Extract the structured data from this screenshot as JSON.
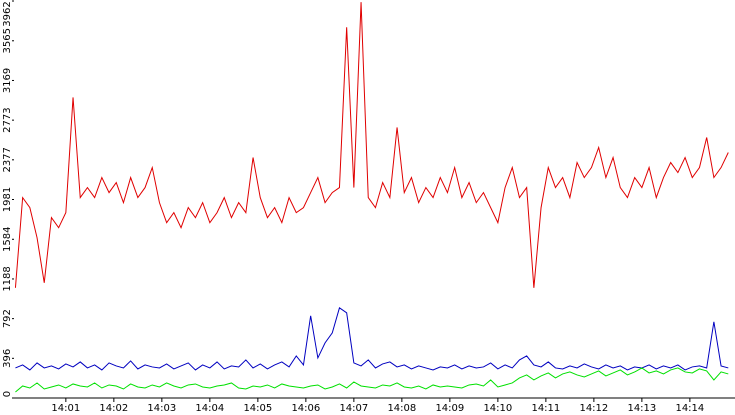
{
  "chart_data": {
    "type": "line",
    "x": [
      839.95,
      840.1,
      840.25,
      840.4,
      840.55,
      840.7,
      840.85,
      841,
      841.15,
      841.3,
      841.45,
      841.6,
      841.75,
      841.9,
      842.05,
      842.2,
      842.35,
      842.5,
      842.65,
      842.8,
      842.95,
      843.1,
      843.25,
      843.4,
      843.55,
      843.7,
      843.85,
      844,
      844.15,
      844.3,
      844.45,
      844.6,
      844.75,
      844.9,
      845.05,
      845.2,
      845.35,
      845.5,
      845.65,
      845.8,
      845.95,
      846.1,
      846.25,
      846.4,
      846.55,
      846.7,
      846.85,
      847,
      847.15,
      847.3,
      847.45,
      847.6,
      847.75,
      847.9,
      848.05,
      848.2,
      848.35,
      848.5,
      848.65,
      848.8,
      848.95,
      849.1,
      849.25,
      849.4,
      849.55,
      849.7,
      849.85,
      850,
      850.15,
      850.3,
      850.45,
      850.6,
      850.75,
      850.9,
      851.05,
      851.2,
      851.35,
      851.5,
      851.65,
      851.8,
      851.95,
      852.1,
      852.25,
      852.4,
      852.55,
      852.7,
      852.85,
      853,
      853.15,
      853.3,
      853.45,
      853.6,
      853.75,
      853.9,
      854.05,
      854.2,
      854.35,
      854.5,
      854.65,
      854.8
    ],
    "series": [
      {
        "color": "#e00000",
        "values": [
          1100,
          2000,
          1900,
          1600,
          1150,
          1800,
          1700,
          1850,
          3000,
          2000,
          2100,
          2000,
          2200,
          2050,
          2150,
          1950,
          2200,
          2000,
          2100,
          2300,
          1950,
          1750,
          1850,
          1700,
          1900,
          1800,
          1950,
          1750,
          1850,
          2000,
          1800,
          1950,
          1850,
          2400,
          2000,
          1800,
          1900,
          1750,
          2000,
          1850,
          1900,
          2050,
          2200,
          1950,
          2050,
          2100,
          3700,
          2100,
          3950,
          2000,
          1900,
          2150,
          2000,
          2700,
          2050,
          2200,
          1950,
          2100,
          2000,
          2200,
          2050,
          2300,
          2000,
          2150,
          1950,
          2050,
          1900,
          1750,
          2100,
          2300,
          2000,
          2100,
          1100,
          1900,
          2300,
          2100,
          2200,
          2000,
          2350,
          2200,
          2300,
          2500,
          2200,
          2400,
          2100,
          2000,
          2200,
          2100,
          2300,
          2000,
          2200,
          2350,
          2250,
          2400,
          2200,
          2300,
          2600,
          2200,
          2300,
          2450
        ]
      },
      {
        "color": "#0000c0",
        "values": [
          300,
          330,
          280,
          350,
          300,
          320,
          290,
          340,
          310,
          360,
          300,
          330,
          280,
          350,
          320,
          300,
          370,
          290,
          330,
          310,
          300,
          340,
          290,
          320,
          350,
          280,
          330,
          300,
          360,
          290,
          320,
          310,
          380,
          300,
          340,
          290,
          330,
          360,
          310,
          420,
          330,
          820,
          400,
          550,
          650,
          900,
          850,
          350,
          320,
          380,
          300,
          340,
          360,
          310,
          330,
          290,
          320,
          300,
          280,
          310,
          300,
          330,
          290,
          320,
          300,
          310,
          350,
          290,
          330,
          300,
          380,
          420,
          330,
          310,
          360,
          300,
          290,
          320,
          300,
          340,
          310,
          290,
          330,
          300,
          320,
          280,
          310,
          300,
          330,
          290,
          320,
          300,
          330,
          280,
          310,
          320,
          300,
          760,
          320,
          300
        ]
      },
      {
        "color": "#00e000",
        "values": [
          60,
          120,
          100,
          150,
          90,
          110,
          130,
          100,
          140,
          120,
          110,
          150,
          100,
          130,
          120,
          90,
          140,
          110,
          100,
          130,
          110,
          150,
          120,
          100,
          130,
          140,
          110,
          100,
          120,
          130,
          150,
          100,
          90,
          120,
          110,
          130,
          100,
          140,
          120,
          110,
          100,
          120,
          130,
          90,
          110,
          140,
          100,
          160,
          120,
          110,
          100,
          130,
          120,
          150,
          110,
          100,
          120,
          90,
          130,
          110,
          120,
          110,
          100,
          130,
          140,
          120,
          180,
          110,
          130,
          150,
          200,
          230,
          180,
          220,
          250,
          200,
          240,
          260,
          230,
          210,
          240,
          270,
          220,
          250,
          280,
          230,
          260,
          300,
          250,
          270,
          240,
          280,
          300,
          260,
          250,
          290,
          270,
          180,
          260,
          240
        ]
      }
    ],
    "xlim": [
      839.92,
      854.94
    ],
    "ylim": [
      0,
      3962
    ],
    "yticks": [
      0,
      396,
      792,
      1188,
      1584,
      1981,
      2377,
      2773,
      3169,
      3565,
      3962
    ],
    "xticks": [
      {
        "value": 841,
        "label": "14:01"
      },
      {
        "value": 842,
        "label": "14:02"
      },
      {
        "value": 843,
        "label": "14:03"
      },
      {
        "value": 844,
        "label": "14:04"
      },
      {
        "value": 845,
        "label": "14:05"
      },
      {
        "value": 846,
        "label": "14:06"
      },
      {
        "value": 847,
        "label": "14:07"
      },
      {
        "value": 848,
        "label": "14:08"
      },
      {
        "value": 849,
        "label": "14:09"
      },
      {
        "value": 850,
        "label": "14:10"
      },
      {
        "value": 851,
        "label": "14:11"
      },
      {
        "value": 852,
        "label": "14:12"
      },
      {
        "value": 853,
        "label": "14:13"
      },
      {
        "value": 854,
        "label": "14:14"
      }
    ]
  }
}
